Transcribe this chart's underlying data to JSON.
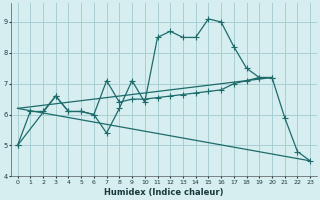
{
  "xlabel": "Humidex (Indice chaleur)",
  "bg_color": "#d6eef0",
  "grid_color": "#a8cfd4",
  "line_color": "#1e6b6b",
  "xlim": [
    -0.5,
    23.5
  ],
  "ylim": [
    4.0,
    9.6
  ],
  "xticks": [
    0,
    1,
    2,
    3,
    4,
    5,
    6,
    7,
    8,
    9,
    10,
    11,
    12,
    13,
    14,
    15,
    16,
    17,
    18,
    19,
    20,
    21,
    22,
    23
  ],
  "yticks": [
    4,
    5,
    6,
    7,
    8,
    9
  ],
  "line1_x": [
    0,
    1,
    2,
    3,
    4,
    5,
    6,
    7,
    8,
    9,
    10,
    11,
    12,
    13,
    14,
    15,
    16,
    17,
    18,
    19,
    20,
    21,
    22,
    23
  ],
  "line1_y": [
    5.0,
    6.1,
    6.1,
    6.6,
    6.1,
    6.1,
    6.0,
    5.4,
    6.2,
    7.1,
    6.4,
    8.5,
    8.7,
    8.5,
    8.5,
    9.1,
    9.0,
    8.2,
    7.5,
    7.2,
    7.2,
    5.9,
    4.8,
    4.5
  ],
  "line2_x": [
    0,
    20
  ],
  "line2_y": [
    6.2,
    7.2
  ],
  "line3_x": [
    0,
    23
  ],
  "line3_y": [
    6.2,
    4.5
  ],
  "line4_x": [
    0,
    3,
    4,
    5,
    6,
    7,
    8,
    9,
    10,
    11,
    12,
    13,
    14,
    15,
    16,
    17,
    18,
    19,
    20
  ],
  "line4_y": [
    5.0,
    6.6,
    6.1,
    6.1,
    6.0,
    7.1,
    6.4,
    6.5,
    6.5,
    6.55,
    6.6,
    6.65,
    6.7,
    6.75,
    6.8,
    7.0,
    7.1,
    7.2,
    7.2
  ]
}
